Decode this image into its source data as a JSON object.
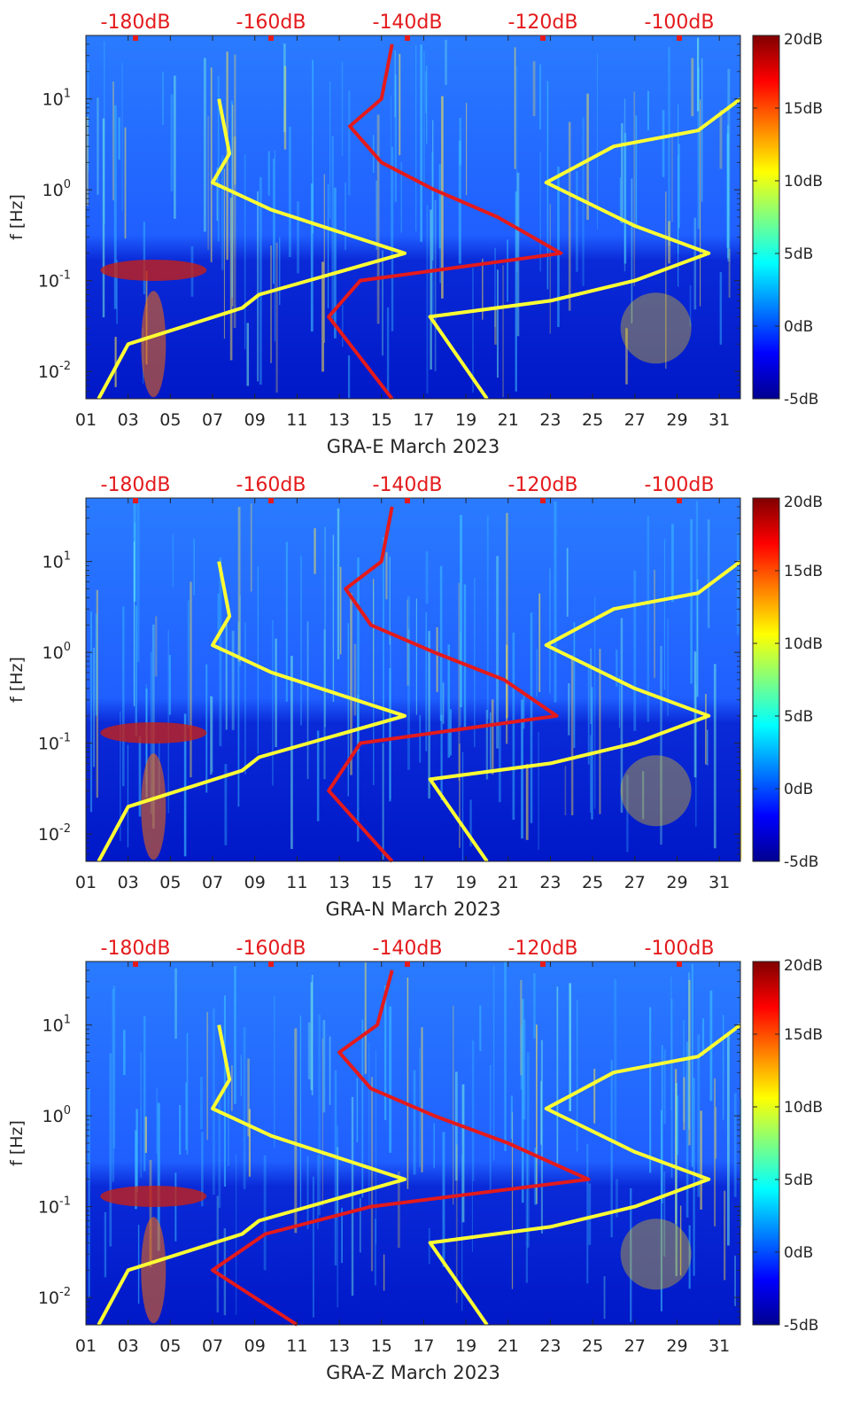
{
  "chart_data": [
    {
      "type": "heatmap",
      "xlabel": "GRA-E March 2023",
      "ylabel": "f [Hz]",
      "x_tick_labels": [
        "01",
        "03",
        "05",
        "07",
        "09",
        "11",
        "13",
        "15",
        "17",
        "19",
        "21",
        "23",
        "25",
        "27",
        "29",
        "31"
      ],
      "y_tick_labels": [
        "10^-2",
        "10^-1",
        "10^0",
        "10^1"
      ],
      "y_scale": "log",
      "ylim": [
        0.005,
        50
      ],
      "xlim": [
        1,
        32
      ],
      "top_axis_labels": [
        "-180dB",
        "-160dB",
        "-140dB",
        "-120dB",
        "-100dB"
      ],
      "colorbar_labels": [
        "20dB",
        "15dB",
        "10dB",
        "5dB",
        "0dB",
        "-5dB"
      ],
      "colorbar_range": [
        -5,
        20
      ],
      "colors": {
        "red_curve": "#e41a1c",
        "yellow_curve": "#ffff33"
      },
      "series": [
        {
          "values_freq_hz": [
            10,
            2.5,
            1.2,
            0.6,
            0.2,
            0.07,
            0.05,
            0.02,
            0.005
          ],
          "values_day": [
            7.3,
            7.8,
            7.0,
            9.8,
            16.1,
            9.2,
            8.4,
            3.0,
            1.6
          ]
        },
        {
          "values_freq_hz": [
            10,
            4.5,
            3,
            1.2,
            0.4,
            0.2,
            0.1,
            0.06,
            0.04,
            0.005
          ],
          "values_day": [
            32,
            30,
            26,
            22.8,
            27,
            30.5,
            27,
            23,
            17.3,
            20
          ]
        },
        {
          "values_freq_hz": [
            40,
            10,
            5,
            2,
            1,
            0.5,
            0.2,
            0.1,
            0.04,
            0.005
          ],
          "values_day": [
            15.5,
            15,
            13.5,
            15,
            17.5,
            20.5,
            23.5,
            14,
            12.5,
            15.5
          ]
        }
      ]
    },
    {
      "type": "heatmap",
      "xlabel": "GRA-N March 2023",
      "ylabel": "f [Hz]",
      "x_tick_labels": [
        "01",
        "03",
        "05",
        "07",
        "09",
        "11",
        "13",
        "15",
        "17",
        "19",
        "21",
        "23",
        "25",
        "27",
        "29",
        "31"
      ],
      "y_tick_labels": [
        "10^-2",
        "10^-1",
        "10^0",
        "10^1"
      ],
      "y_scale": "log",
      "ylim": [
        0.005,
        50
      ],
      "xlim": [
        1,
        32
      ],
      "top_axis_labels": [
        "-180dB",
        "-160dB",
        "-140dB",
        "-120dB",
        "-100dB"
      ],
      "colorbar_labels": [
        "20dB",
        "15dB",
        "10dB",
        "5dB",
        "0dB",
        "-5dB"
      ],
      "colorbar_range": [
        -5,
        20
      ],
      "series": [
        {
          "values_freq_hz": [
            10,
            2.5,
            1.2,
            0.6,
            0.2,
            0.07,
            0.05,
            0.02,
            0.005
          ],
          "values_day": [
            7.3,
            7.8,
            7.0,
            9.8,
            16.1,
            9.2,
            8.4,
            3.0,
            1.6
          ]
        },
        {
          "values_freq_hz": [
            10,
            4.5,
            3,
            1.2,
            0.4,
            0.2,
            0.1,
            0.06,
            0.04,
            0.005
          ],
          "values_day": [
            32,
            30,
            26,
            22.8,
            27,
            30.5,
            27,
            23,
            17.3,
            20
          ]
        },
        {
          "values_freq_hz": [
            40,
            10,
            5,
            2,
            1,
            0.5,
            0.2,
            0.1,
            0.03,
            0.005
          ],
          "values_day": [
            15.5,
            15,
            13.3,
            14.5,
            17.5,
            20.8,
            23.3,
            14,
            12.5,
            15.5
          ]
        }
      ]
    },
    {
      "type": "heatmap",
      "xlabel": "GRA-Z March 2023",
      "ylabel": "f [Hz]",
      "x_tick_labels": [
        "01",
        "03",
        "05",
        "07",
        "09",
        "11",
        "13",
        "15",
        "17",
        "19",
        "21",
        "23",
        "25",
        "27",
        "29",
        "31"
      ],
      "y_tick_labels": [
        "10^-2",
        "10^-1",
        "10^0",
        "10^1"
      ],
      "y_scale": "log",
      "ylim": [
        0.005,
        50
      ],
      "xlim": [
        1,
        32
      ],
      "top_axis_labels": [
        "-180dB",
        "-160dB",
        "-140dB",
        "-120dB",
        "-100dB"
      ],
      "colorbar_labels": [
        "20dB",
        "15dB",
        "10dB",
        "5dB",
        "0dB",
        "-5dB"
      ],
      "colorbar_range": [
        -5,
        20
      ],
      "series": [
        {
          "values_freq_hz": [
            10,
            2.5,
            1.2,
            0.6,
            0.2,
            0.07,
            0.05,
            0.02,
            0.005
          ],
          "values_day": [
            7.3,
            7.8,
            7.0,
            9.8,
            16.1,
            9.2,
            8.4,
            3.0,
            1.6
          ]
        },
        {
          "values_freq_hz": [
            10,
            4.5,
            3,
            1.2,
            0.4,
            0.2,
            0.1,
            0.06,
            0.04,
            0.005
          ],
          "values_day": [
            32,
            30,
            26,
            22.8,
            27,
            30.5,
            27,
            23,
            17.3,
            20
          ]
        },
        {
          "values_freq_hz": [
            40,
            10,
            5,
            2,
            1,
            0.5,
            0.2,
            0.1,
            0.05,
            0.02,
            0.005
          ],
          "values_day": [
            15.5,
            14.8,
            13,
            14.5,
            17.5,
            21,
            24.8,
            14.5,
            9.5,
            7,
            11
          ]
        }
      ]
    }
  ]
}
